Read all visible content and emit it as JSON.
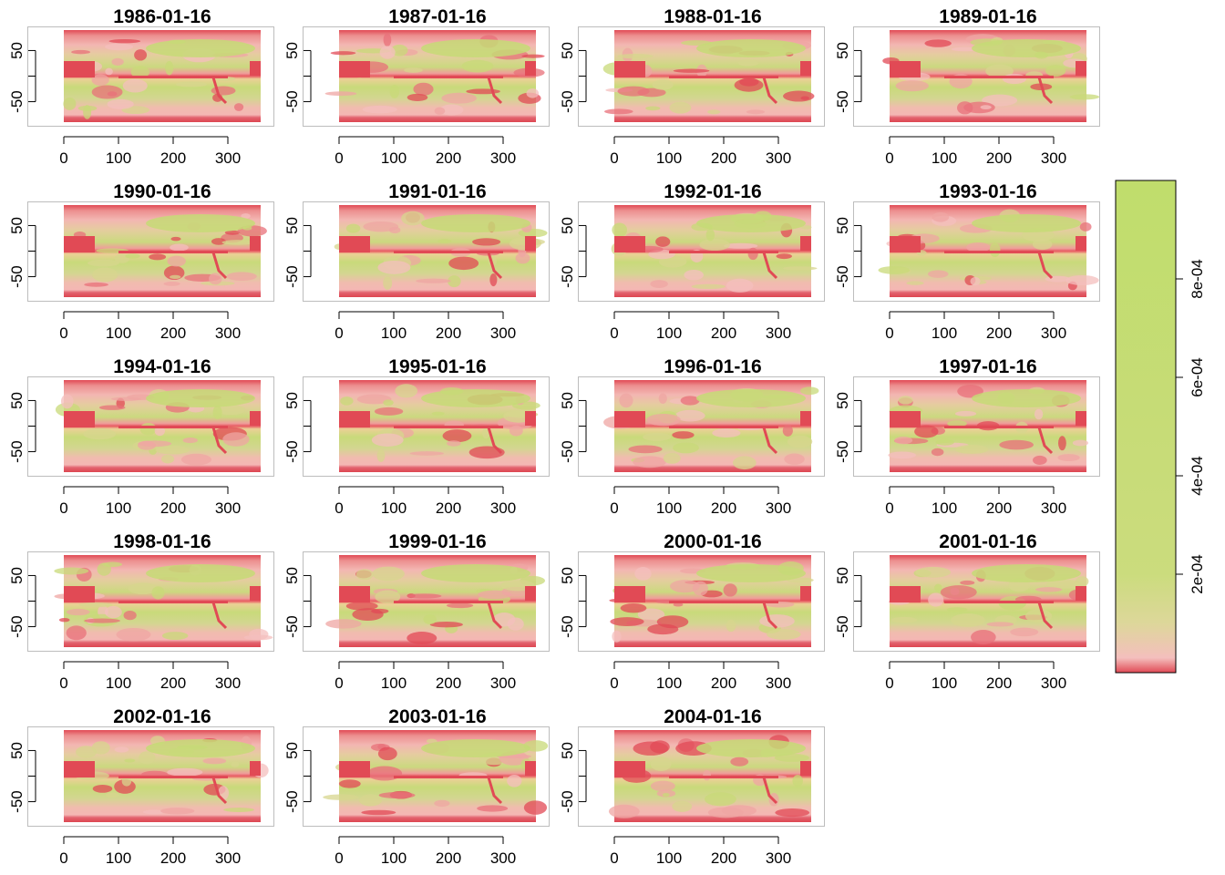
{
  "chart_data": {
    "type": "heatmap",
    "panels": [
      {
        "title": "1986-01-16"
      },
      {
        "title": "1987-01-16"
      },
      {
        "title": "1988-01-16"
      },
      {
        "title": "1989-01-16"
      },
      {
        "title": "1990-01-16"
      },
      {
        "title": "1991-01-16"
      },
      {
        "title": "1992-01-16"
      },
      {
        "title": "1993-01-16"
      },
      {
        "title": "1994-01-16"
      },
      {
        "title": "1995-01-16"
      },
      {
        "title": "1996-01-16"
      },
      {
        "title": "1997-01-16"
      },
      {
        "title": "1998-01-16"
      },
      {
        "title": "1999-01-16"
      },
      {
        "title": "2000-01-16"
      },
      {
        "title": "2001-01-16"
      },
      {
        "title": "2002-01-16"
      },
      {
        "title": "2003-01-16"
      },
      {
        "title": "2004-01-16"
      }
    ],
    "x_ticks": [
      "0",
      "100",
      "200",
      "300"
    ],
    "x_tick_values": [
      0,
      100,
      200,
      300
    ],
    "y_ticks": [
      "-50",
      "",
      "50"
    ],
    "y_tick_values": [
      -50,
      0,
      50
    ],
    "xlim": [
      0,
      360
    ],
    "ylim": [
      -90,
      90
    ],
    "colorbar": {
      "ticks": [
        "2e-04",
        "4e-04",
        "6e-04",
        "8e-04"
      ],
      "tick_values": [
        0.0002,
        0.0004,
        0.0006,
        0.0008
      ],
      "range": [
        0,
        0.001
      ],
      "colors": [
        "#e14a55",
        "#f4bfbd",
        "#ddd79a",
        "#c0dd6c"
      ]
    }
  }
}
